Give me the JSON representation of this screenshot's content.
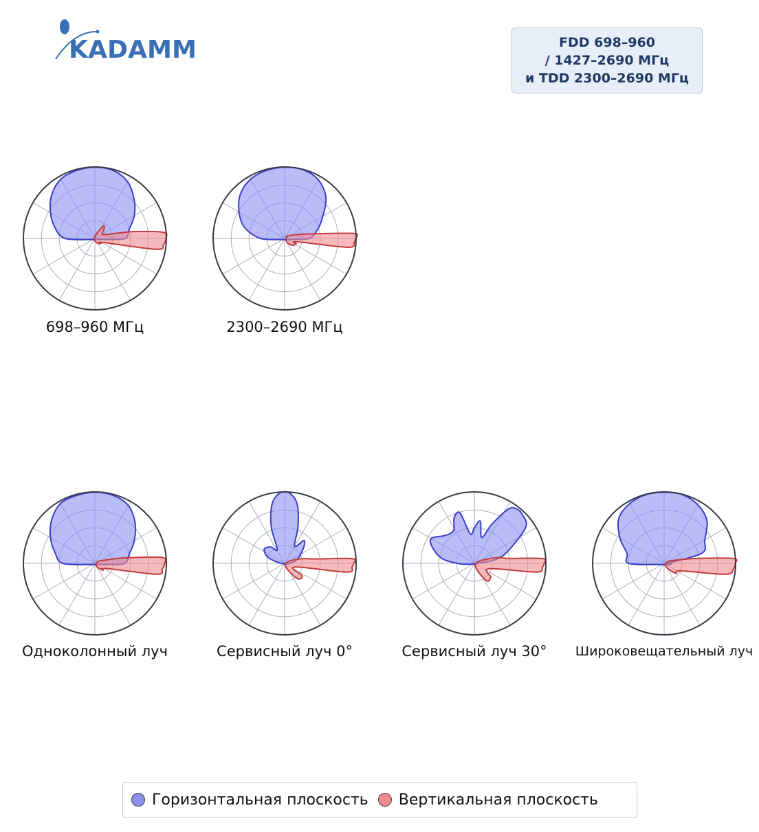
{
  "logo": {
    "text": "KADAMM"
  },
  "band": {
    "lines": [
      "FDD 698–960",
      "/ 1427–2690 МГц",
      "и TDD 2300–2690 МГц"
    ]
  },
  "colors": {
    "horizontal_fill": "#8a8ff0",
    "horizontal_stroke": "#3b3fc4",
    "vertical_fill": "#f08a8f",
    "vertical_stroke": "#c43b3b",
    "grid": "#a9adc0",
    "outer_ring": "#3a3a48",
    "logo": "#3a6fb5"
  },
  "legend": {
    "horizontal": "Горизонтальная плоскость",
    "vertical": "Вертикальная плоскость"
  },
  "chart_data": [
    {
      "type": "polar",
      "title": "698–960 МГц",
      "rlim": [
        0,
        1
      ],
      "grid_rings": 4,
      "grid_spokes": 12,
      "series": [
        {
          "key": "horizontal",
          "points": [
            [
              0,
              0.43
            ],
            [
              15,
              0.5
            ],
            [
              30,
              0.64
            ],
            [
              45,
              0.78
            ],
            [
              60,
              0.92
            ],
            [
              75,
              0.99
            ],
            [
              90,
              1.0
            ],
            [
              105,
              0.99
            ],
            [
              120,
              0.96
            ],
            [
              135,
              0.86
            ],
            [
              150,
              0.72
            ],
            [
              165,
              0.58
            ],
            [
              180,
              0.42
            ],
            [
              200,
              0.05
            ],
            [
              340,
              0.04
            ],
            [
              355,
              0.18
            ]
          ]
        },
        {
          "key": "vertical",
          "points": [
            [
              0,
              1.0
            ],
            [
              5,
              0.97
            ],
            [
              10,
              0.55
            ],
            [
              18,
              0.18
            ],
            [
              30,
              0.12
            ],
            [
              45,
              0.18
            ],
            [
              55,
              0.22
            ],
            [
              62,
              0.12
            ],
            [
              90,
              0.03
            ],
            [
              270,
              0.03
            ],
            [
              300,
              0.08
            ],
            [
              320,
              0.11
            ],
            [
              335,
              0.14
            ],
            [
              350,
              0.88
            ],
            [
              355,
              0.97
            ]
          ]
        }
      ]
    },
    {
      "type": "polar",
      "title": "2300–2690 МГц",
      "rlim": [
        0,
        1
      ],
      "grid_rings": 4,
      "grid_spokes": 12,
      "series": [
        {
          "key": "horizontal",
          "points": [
            [
              0,
              0.35
            ],
            [
              15,
              0.48
            ],
            [
              30,
              0.62
            ],
            [
              45,
              0.82
            ],
            [
              60,
              0.95
            ],
            [
              75,
              1.0
            ],
            [
              90,
              1.0
            ],
            [
              105,
              0.99
            ],
            [
              120,
              0.96
            ],
            [
              135,
              0.88
            ],
            [
              150,
              0.74
            ],
            [
              165,
              0.58
            ],
            [
              180,
              0.34
            ],
            [
              200,
              0.05
            ],
            [
              340,
              0.05
            ],
            [
              355,
              0.15
            ]
          ]
        },
        {
          "key": "vertical",
          "points": [
            [
              0,
              1.0
            ],
            [
              4,
              0.98
            ],
            [
              8,
              0.48
            ],
            [
              15,
              0.22
            ],
            [
              25,
              0.1
            ],
            [
              40,
              0.04
            ],
            [
              300,
              0.06
            ],
            [
              320,
              0.15
            ],
            [
              335,
              0.18
            ],
            [
              345,
              0.18
            ],
            [
              352,
              0.9
            ],
            [
              357,
              0.98
            ]
          ]
        }
      ]
    },
    {
      "type": "polar",
      "title": "Одноколонный луч",
      "rlim": [
        0,
        1
      ],
      "grid_rings": 4,
      "grid_spokes": 12,
      "series": [
        {
          "key": "horizontal",
          "points": [
            [
              0,
              0.42
            ],
            [
              15,
              0.5
            ],
            [
              30,
              0.64
            ],
            [
              45,
              0.8
            ],
            [
              60,
              0.94
            ],
            [
              75,
              0.99
            ],
            [
              90,
              1.0
            ],
            [
              105,
              0.99
            ],
            [
              120,
              0.97
            ],
            [
              135,
              0.86
            ],
            [
              150,
              0.72
            ],
            [
              165,
              0.58
            ],
            [
              180,
              0.45
            ],
            [
              200,
              0.05
            ],
            [
              340,
              0.04
            ],
            [
              355,
              0.2
            ]
          ]
        },
        {
          "key": "vertical",
          "points": [
            [
              0,
              0.98
            ],
            [
              5,
              0.95
            ],
            [
              10,
              0.45
            ],
            [
              18,
              0.15
            ],
            [
              30,
              0.04
            ],
            [
              300,
              0.05
            ],
            [
              320,
              0.15
            ],
            [
              335,
              0.17
            ],
            [
              350,
              0.88
            ],
            [
              355,
              0.95
            ]
          ]
        }
      ]
    },
    {
      "type": "polar",
      "title": "Сервисный луч 0°",
      "rlim": [
        0,
        1
      ],
      "grid_rings": 4,
      "grid_spokes": 12,
      "series": [
        {
          "key": "horizontal",
          "points": [
            [
              0,
              0.08
            ],
            [
              20,
              0.2
            ],
            [
              40,
              0.35
            ],
            [
              50,
              0.42
            ],
            [
              60,
              0.28
            ],
            [
              70,
              0.55
            ],
            [
              78,
              0.85
            ],
            [
              86,
              0.99
            ],
            [
              94,
              0.99
            ],
            [
              102,
              0.85
            ],
            [
              110,
              0.55
            ],
            [
              118,
              0.22
            ],
            [
              130,
              0.3
            ],
            [
              145,
              0.35
            ],
            [
              160,
              0.25
            ],
            [
              180,
              0.05
            ]
          ]
        },
        {
          "key": "vertical",
          "points": [
            [
              0,
              0.97
            ],
            [
              4,
              0.95
            ],
            [
              8,
              0.45
            ],
            [
              15,
              0.25
            ],
            [
              25,
              0.05
            ],
            [
              290,
              0.06
            ],
            [
              310,
              0.28
            ],
            [
              325,
              0.3
            ],
            [
              340,
              0.15
            ],
            [
              352,
              0.88
            ],
            [
              357,
              0.95
            ]
          ]
        }
      ]
    },
    {
      "type": "polar",
      "title": "Сервисный луч 30°",
      "rlim": [
        0,
        1
      ],
      "grid_rings": 4,
      "grid_spokes": 12,
      "series": [
        {
          "key": "horizontal",
          "points": [
            [
              0,
              0.05
            ],
            [
              10,
              0.3
            ],
            [
              20,
              0.5
            ],
            [
              35,
              0.88
            ],
            [
              45,
              0.96
            ],
            [
              52,
              0.97
            ],
            [
              58,
              0.9
            ],
            [
              66,
              0.6
            ],
            [
              74,
              0.38
            ],
            [
              82,
              0.6
            ],
            [
              90,
              0.5
            ],
            [
              98,
              0.42
            ],
            [
              106,
              0.74
            ],
            [
              114,
              0.7
            ],
            [
              122,
              0.55
            ],
            [
              135,
              0.56
            ],
            [
              150,
              0.7
            ],
            [
              160,
              0.62
            ],
            [
              172,
              0.45
            ],
            [
              182,
              0.2
            ],
            [
              200,
              0.03
            ]
          ]
        },
        {
          "key": "vertical",
          "points": [
            [
              0,
              0.98
            ],
            [
              4,
              0.96
            ],
            [
              8,
              0.5
            ],
            [
              15,
              0.3
            ],
            [
              25,
              0.05
            ],
            [
              290,
              0.08
            ],
            [
              305,
              0.3
            ],
            [
              320,
              0.3
            ],
            [
              340,
              0.22
            ],
            [
              352,
              0.88
            ],
            [
              357,
              0.96
            ]
          ]
        }
      ]
    },
    {
      "type": "polar",
      "title": "Широковещательный луч",
      "rlim": [
        0,
        1
      ],
      "grid_rings": 4,
      "grid_spokes": 12,
      "series": [
        {
          "key": "horizontal",
          "points": [
            [
              0,
              0.05
            ],
            [
              15,
              0.55
            ],
            [
              30,
              0.66
            ],
            [
              45,
              0.85
            ],
            [
              60,
              0.95
            ],
            [
              75,
              1.0
            ],
            [
              90,
              1.0
            ],
            [
              105,
              1.0
            ],
            [
              120,
              0.97
            ],
            [
              135,
              0.9
            ],
            [
              150,
              0.72
            ],
            [
              165,
              0.54
            ],
            [
              180,
              0.5
            ],
            [
              200,
              0.05
            ],
            [
              340,
              0.05
            ],
            [
              355,
              0.1
            ]
          ]
        },
        {
          "key": "vertical",
          "points": [
            [
              0,
              1.0
            ],
            [
              4,
              0.98
            ],
            [
              8,
              0.5
            ],
            [
              15,
              0.18
            ],
            [
              25,
              0.05
            ],
            [
              300,
              0.06
            ],
            [
              320,
              0.22
            ],
            [
              335,
              0.25
            ],
            [
              350,
              0.88
            ],
            [
              356,
              0.98
            ]
          ]
        }
      ]
    }
  ]
}
